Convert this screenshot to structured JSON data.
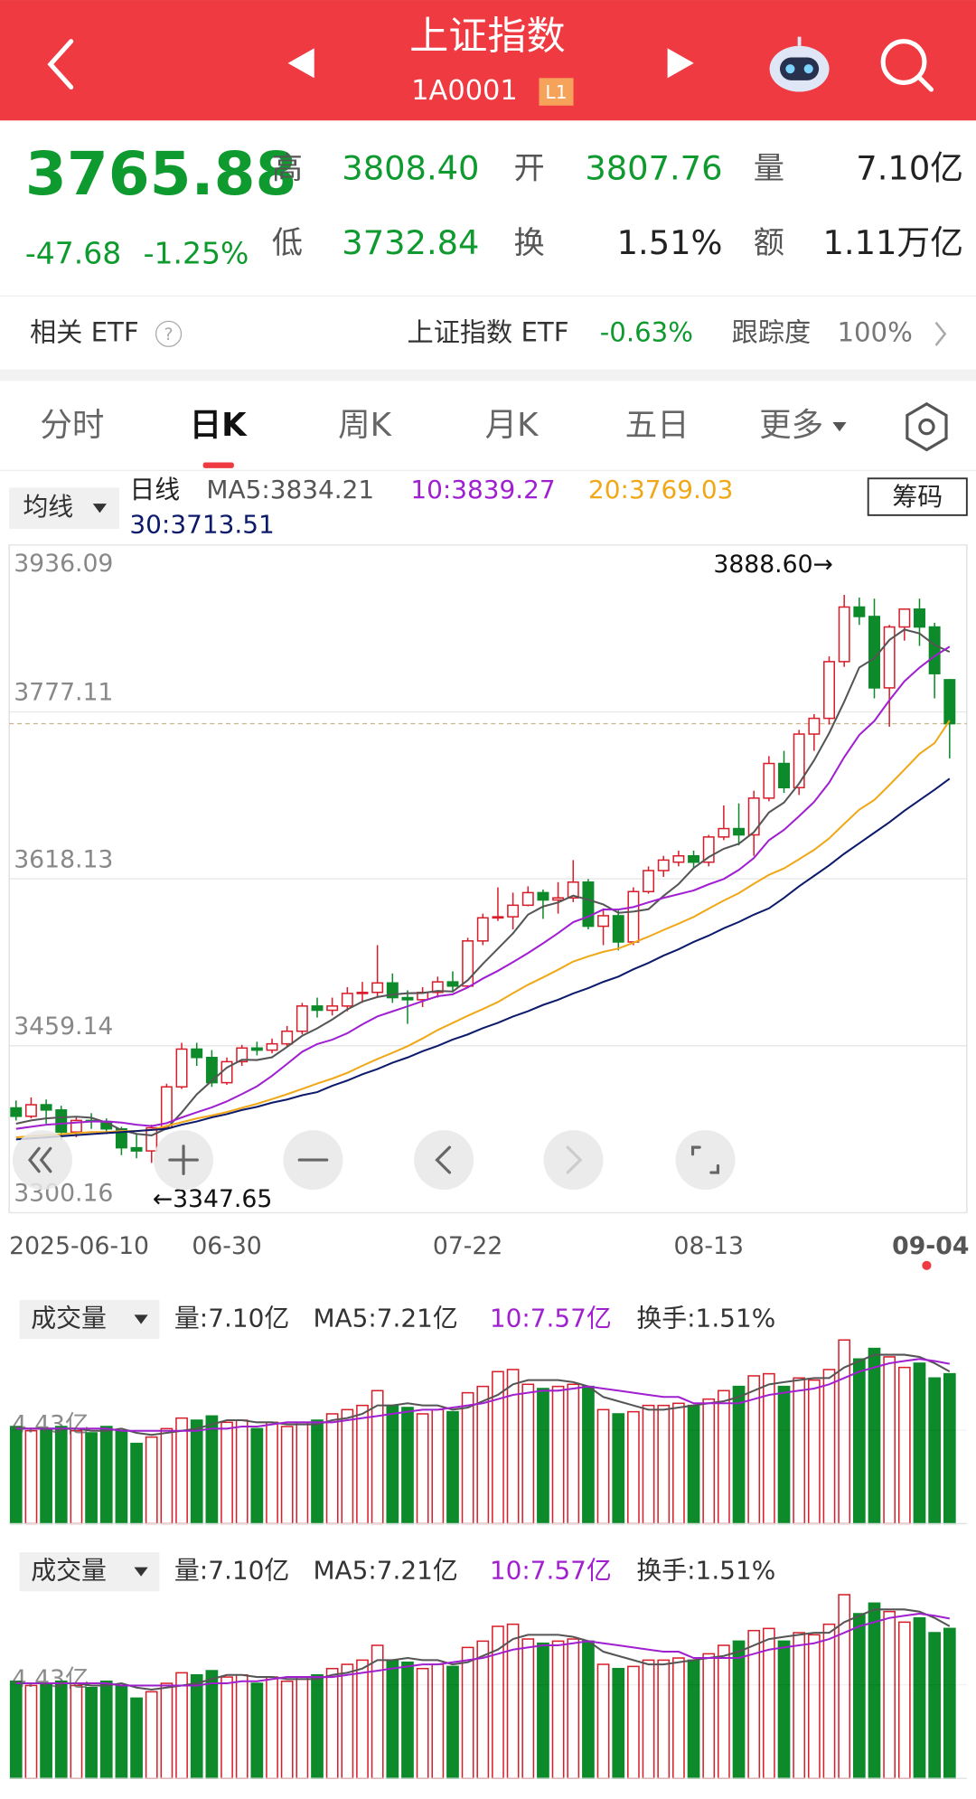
{
  "header": {
    "title": "上证指数",
    "code": "1A0001",
    "badge": "L1"
  },
  "quote": {
    "price": "3765.88",
    "change": "-47.68",
    "change_pct": "-1.25%",
    "fields": [
      {
        "label": "高",
        "value": "3808.40"
      },
      {
        "label": "开",
        "value": "3807.76"
      },
      {
        "label": "量",
        "value": "7.10亿"
      },
      {
        "label": "低",
        "value": "3732.84"
      },
      {
        "label": "换",
        "value": "1.51%"
      },
      {
        "label": "额",
        "value": "1.11万亿"
      }
    ]
  },
  "etf": {
    "label": "相关 ETF",
    "name": "上证指数 ETF",
    "change": "-0.63%",
    "tracking_label": "跟踪度",
    "tracking": "100%"
  },
  "tabs": [
    "分时",
    "日K",
    "周K",
    "月K",
    "五日",
    "更多"
  ],
  "ma_bar": {
    "selector": "均线",
    "period": "日线",
    "button": "筹码"
  },
  "chart_data": [
    {
      "type": "candlestick",
      "legend": [
        "MA5:3834.21",
        "10:3839.27",
        "20:3769.03",
        "30:3713.51"
      ],
      "annotations": [
        "3888.60→",
        "←3347.65"
      ],
      "up_color": "#d81e2a",
      "down_color": "#0d8a2a",
      "categories": [
        "2025-06-10",
        null,
        null,
        null,
        null,
        null,
        null,
        null,
        null,
        null,
        null,
        null,
        null,
        null,
        "06-30",
        null,
        null,
        null,
        null,
        null,
        null,
        null,
        null,
        null,
        null,
        null,
        null,
        null,
        null,
        null,
        "07-22",
        null,
        null,
        null,
        null,
        null,
        null,
        null,
        null,
        null,
        null,
        null,
        null,
        null,
        null,
        null,
        "08-13",
        null,
        null,
        null,
        null,
        null,
        null,
        null,
        null,
        null,
        null,
        null,
        null,
        null,
        null,
        null,
        "09-04"
      ],
      "open": [
        3400,
        3392,
        3403,
        3398,
        3377,
        3388,
        3387,
        3380,
        3362,
        3359,
        3381,
        3420,
        3456,
        3448,
        3424,
        3444,
        3457,
        3455,
        3461,
        3473,
        3497,
        3493,
        3497,
        3509,
        3510,
        3519,
        3505,
        3503,
        3510,
        3520,
        3516,
        3559,
        3581,
        3582,
        3593,
        3605,
        3598,
        3600,
        3615,
        3573,
        3583,
        3558,
        3606,
        3626,
        3634,
        3640,
        3634,
        3658,
        3666,
        3660,
        3695,
        3728,
        3705,
        3756,
        3771,
        3825,
        3877,
        3868,
        3800,
        3858,
        3875,
        3858,
        3807.76
      ],
      "high": [
        3407,
        3410,
        3408,
        3402,
        3392,
        3395,
        3390,
        3382,
        3375,
        3384,
        3423,
        3462,
        3462,
        3455,
        3448,
        3460,
        3463,
        3466,
        3478,
        3500,
        3505,
        3505,
        3515,
        3520,
        3555,
        3528,
        3512,
        3515,
        3525,
        3530,
        3562,
        3585,
        3610,
        3605,
        3611,
        3608,
        3615,
        3636,
        3618,
        3590,
        3588,
        3610,
        3630,
        3640,
        3645,
        3645,
        3660,
        3688,
        3690,
        3702,
        3735,
        3740,
        3760,
        3775,
        3830,
        3888.6,
        3886,
        3885,
        3860,
        3875,
        3885,
        3862,
        3808.4
      ],
      "low": [
        3388,
        3390,
        3385,
        3370,
        3372,
        3380,
        3375,
        3355,
        3352,
        3347.65,
        3380,
        3418,
        3440,
        3420,
        3422,
        3440,
        3450,
        3452,
        3458,
        3470,
        3486,
        3488,
        3492,
        3500,
        3505,
        3500,
        3480,
        3496,
        3505,
        3510,
        3514,
        3555,
        3578,
        3570,
        3592,
        3580,
        3585,
        3596,
        3570,
        3555,
        3550,
        3555,
        3604,
        3620,
        3630,
        3628,
        3630,
        3655,
        3650,
        3640,
        3692,
        3700,
        3698,
        3740,
        3765,
        3820,
        3860,
        3790,
        3763,
        3845,
        3840,
        3790,
        3732.84
      ],
      "close": [
        3392,
        3403,
        3398,
        3377,
        3388,
        3387,
        3380,
        3362,
        3359,
        3381,
        3420,
        3456,
        3448,
        3424,
        3444,
        3457,
        3455,
        3461,
        3473,
        3497,
        3493,
        3497,
        3509,
        3510,
        3519,
        3505,
        3503,
        3510,
        3520,
        3516,
        3559,
        3581,
        3582,
        3593,
        3605,
        3598,
        3600,
        3615,
        3573,
        3583,
        3558,
        3606,
        3626,
        3636,
        3640,
        3634,
        3658,
        3666,
        3660,
        3695,
        3728,
        3705,
        3756,
        3771,
        3825,
        3877,
        3868,
        3800,
        3858,
        3875,
        3858,
        3813.56,
        3765.88
      ],
      "series": [
        {
          "color": "#555555",
          "values": [
            3385,
            3388,
            3390,
            3391,
            3391.6,
            3390.6,
            3386,
            3378.8,
            3375.2,
            3373.8,
            3380.4,
            3395.6,
            3412.8,
            3425.8,
            3438.4,
            3445.8,
            3445.6,
            3448.2,
            3458,
            3468.6,
            3475.8,
            3484.2,
            3493.8,
            3501.2,
            3505.6,
            3508,
            3509.2,
            3509.4,
            3511.4,
            3510.8,
            3521.6,
            3537.2,
            3551.6,
            3566.2,
            3584,
            3591.8,
            3595.6,
            3602.2,
            3598.2,
            3593.8,
            3585.8,
            3587,
            3589.2,
            3601.8,
            3613.2,
            3628.4,
            3638.8,
            3646.8,
            3651.6,
            3662.6,
            3681.4,
            3690.8,
            3708.8,
            3731,
            3757,
            3786.8,
            3819.4,
            3828.2,
            3845.6,
            3855.6,
            3851.8,
            3840.9,
            3834.21
          ]
        },
        {
          "color": "#a020d0",
          "values": [
            3380,
            3382,
            3384,
            3385,
            3386,
            3387,
            3387,
            3386,
            3384,
            3382.7,
            3385.5,
            3390.8,
            3395.8,
            3400.5,
            3406.1,
            3413.1,
            3420.6,
            3430.5,
            3441.9,
            3453.5,
            3460.8,
            3464.9,
            3471,
            3479.6,
            3487.1,
            3491.9,
            3496.7,
            3501.6,
            3506.3,
            3508.2,
            3514.8,
            3523.2,
            3530.5,
            3538.8,
            3547.4,
            3556.7,
            3566.4,
            3576.9,
            3582.2,
            3588.9,
            3588.8,
            3591.3,
            3595.7,
            3600,
            3603.5,
            3607.1,
            3612.9,
            3618,
            3626.7,
            3637.9,
            3654.9,
            3664.8,
            3677.8,
            3691.3,
            3709.8,
            3734.1,
            3755.1,
            3768.5,
            3788.3,
            3806.3,
            3819.3,
            3830.2,
            3839.27
          ]
        },
        {
          "color": "#f0a818",
          "values": [
            3372,
            3373,
            3374,
            3375,
            3376,
            3377,
            3377,
            3378,
            3378,
            3379,
            3382.8,
            3386.4,
            3389.9,
            3392.8,
            3396,
            3400,
            3403.8,
            3408.3,
            3413,
            3418.1,
            3423.2,
            3427.9,
            3433.4,
            3440.1,
            3446.6,
            3452.5,
            3458.7,
            3466.1,
            3474.1,
            3480.9,
            3487.8,
            3494.1,
            3500.8,
            3509.2,
            3517.3,
            3524.3,
            3531.6,
            3539.3,
            3544.3,
            3548.6,
            3551.8,
            3557.3,
            3563.1,
            3569.4,
            3575.5,
            3581.9,
            3589.7,
            3597.5,
            3604.5,
            3613.4,
            3621.9,
            3628.1,
            3636.8,
            3645.7,
            3656.7,
            3670.6,
            3684,
            3693.3,
            3707.5,
            3722.1,
            3737.1,
            3747.5,
            3769.03
          ]
        },
        {
          "color": "#0c1a6b",
          "values": [
            3370,
            3371,
            3372,
            3373,
            3374,
            3375,
            3376,
            3377,
            3378,
            3379,
            3380,
            3384,
            3387,
            3391,
            3394,
            3398,
            3401,
            3405,
            3408,
            3412,
            3415,
            3421,
            3426,
            3432,
            3437,
            3443,
            3448,
            3454,
            3459,
            3465,
            3470,
            3476,
            3481,
            3487,
            3492,
            3498,
            3503,
            3509,
            3514,
            3520,
            3525,
            3532,
            3538,
            3545,
            3551,
            3558,
            3564,
            3571,
            3577,
            3584,
            3590,
            3600,
            3611,
            3621,
            3631,
            3642,
            3652,
            3662,
            3672,
            3683,
            3693,
            3703,
            3713.51
          ]
        }
      ],
      "ylim": [
        3300.16,
        3936.09
      ],
      "yticks": [
        {
          "value": 3936.09,
          "label": "3936.09"
        },
        {
          "value": 3777.11,
          "label": "3777.11"
        },
        {
          "value": 3618.13,
          "label": "3618.13"
        },
        {
          "value": 3459.14,
          "label": "3459.14"
        },
        {
          "value": 3300.16,
          "label": "3300.16"
        }
      ]
    },
    {
      "type": "bar",
      "selector": "成交量",
      "legend": [
        "量:7.10亿",
        "MA5:7.21亿",
        "10:7.57亿",
        "换手:1.51%"
      ],
      "values": [
        4.6,
        4.4,
        4.5,
        4.6,
        4.4,
        4.3,
        4.6,
        4.4,
        3.8,
        4.1,
        4.5,
        5.0,
        4.9,
        5.1,
        4.8,
        4.9,
        4.5,
        4.8,
        4.6,
        4.8,
        4.9,
        5.2,
        5.4,
        5.6,
        6.3,
        5.6,
        5.5,
        5.2,
        5.4,
        5.3,
        6.2,
        6.5,
        7.2,
        7.3,
        6.6,
        6.4,
        6.5,
        6.6,
        6.5,
        5.4,
        5.2,
        5.3,
        5.6,
        5.6,
        5.7,
        5.6,
        5.9,
        6.3,
        6.5,
        7.0,
        7.1,
        6.5,
        6.9,
        6.8,
        7.3,
        8.7,
        7.8,
        8.3,
        7.9,
        7.4,
        7.6,
        6.9,
        7.1
      ],
      "series": [
        {
          "color": "#555555",
          "values": [
            4.5,
            4.5,
            4.5,
            4.5,
            4.5,
            4.4,
            4.4,
            4.5,
            4.3,
            4.2,
            4.3,
            4.4,
            4.5,
            4.7,
            4.9,
            4.9,
            4.8,
            4.8,
            4.7,
            4.7,
            4.7,
            4.9,
            5.0,
            5.2,
            5.6,
            5.6,
            5.7,
            5.6,
            5.6,
            5.4,
            5.5,
            5.8,
            6.1,
            6.6,
            6.8,
            6.8,
            6.8,
            6.7,
            6.5,
            6.0,
            5.8,
            5.6,
            5.4,
            5.4,
            5.5,
            5.6,
            5.7,
            5.8,
            6.0,
            6.3,
            6.6,
            6.7,
            6.8,
            6.9,
            6.9,
            7.4,
            7.7,
            8.0,
            8.0,
            8.0,
            7.9,
            7.6,
            7.21
          ]
        },
        {
          "color": "#a020d0",
          "values": [
            4.5,
            4.5,
            4.5,
            4.5,
            4.5,
            4.5,
            4.5,
            4.4,
            4.4,
            4.4,
            4.4,
            4.4,
            4.4,
            4.5,
            4.5,
            4.6,
            4.6,
            4.7,
            4.8,
            4.8,
            4.8,
            4.8,
            4.9,
            5.0,
            5.1,
            5.2,
            5.3,
            5.4,
            5.4,
            5.5,
            5.6,
            5.7,
            5.9,
            6.1,
            6.2,
            6.3,
            6.3,
            6.4,
            6.5,
            6.4,
            6.3,
            6.2,
            6.1,
            6.0,
            6.0,
            5.7,
            5.7,
            5.7,
            5.7,
            5.9,
            6.1,
            6.2,
            6.3,
            6.4,
            6.6,
            6.9,
            7.2,
            7.4,
            7.6,
            7.7,
            7.8,
            7.7,
            7.57
          ]
        }
      ],
      "ylim": [
        0,
        8.86
      ],
      "yticks": [
        {
          "value": 4.43,
          "label": "4.43亿"
        }
      ]
    }
  ]
}
